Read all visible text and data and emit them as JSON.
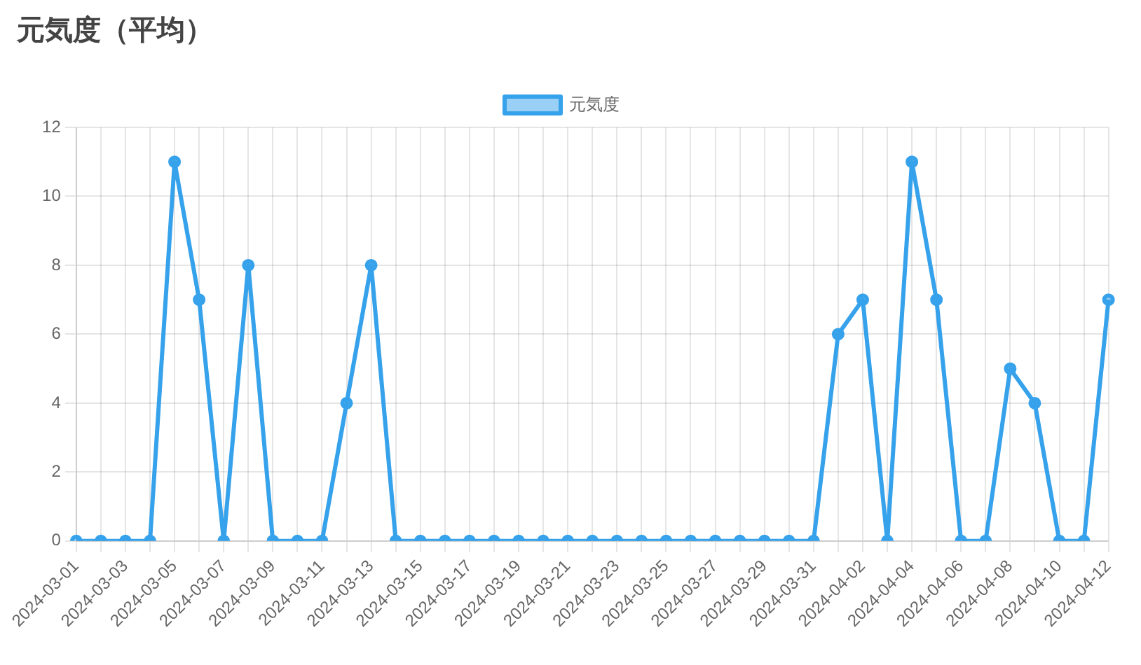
{
  "chart_data": {
    "type": "line",
    "title": "元気度（平均）",
    "categories": [
      "2024-03-01",
      null,
      "2024-03-03",
      null,
      "2024-03-05",
      null,
      "2024-03-07",
      null,
      "2024-03-09",
      null,
      "2024-03-11",
      null,
      "2024-03-13",
      null,
      "2024-03-15",
      null,
      "2024-03-17",
      null,
      "2024-03-19",
      null,
      "2024-03-21",
      null,
      "2024-03-23",
      null,
      "2024-03-25",
      null,
      "2024-03-27",
      null,
      "2024-03-29",
      null,
      "2024-03-31",
      null,
      "2024-04-02",
      null,
      "2024-04-04",
      null,
      "2024-04-06",
      null,
      "2024-04-08",
      null,
      "2024-04-10",
      null,
      "2024-04-12"
    ],
    "series": [
      {
        "name": "元気度",
        "color": "#36a2eb",
        "values": [
          0,
          0,
          0,
          0,
          11,
          7,
          0,
          8,
          0,
          0,
          0,
          4,
          8,
          0,
          0,
          0,
          0,
          0,
          0,
          0,
          0,
          0,
          0,
          0,
          0,
          0,
          0,
          0,
          0,
          0,
          0,
          6,
          7,
          0,
          11,
          7,
          0,
          0,
          5,
          4,
          0,
          0,
          7
        ]
      }
    ],
    "ylim": [
      0,
      12
    ],
    "yticks": [
      0,
      2,
      4,
      6,
      8,
      10,
      12
    ],
    "grid": true,
    "legend": "top",
    "marker": "circle",
    "line_style": "solid"
  }
}
